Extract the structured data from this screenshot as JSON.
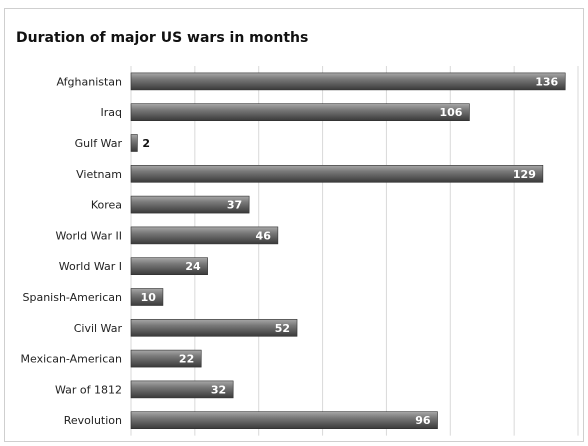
{
  "chart_data": {
    "type": "bar",
    "orientation": "horizontal",
    "title": "Duration of major US wars in months",
    "categories": [
      "Afghanistan",
      "Iraq",
      "Gulf War",
      "Vietnam",
      "Korea",
      "World War II",
      "World War I",
      "Spanish-American",
      "Civil War",
      "Mexican-American",
      "War of 1812",
      "Revolution"
    ],
    "values": [
      136,
      106,
      2,
      129,
      37,
      46,
      24,
      10,
      52,
      22,
      32,
      96
    ],
    "xlim": [
      0,
      140
    ],
    "grid": true,
    "colors": {
      "bar_light": "#9a9a9a",
      "bar_dark": "#3e3e3e",
      "grid": "#d9d9d9",
      "label_inside": "#ffffff",
      "label_outside": "#111111"
    }
  }
}
